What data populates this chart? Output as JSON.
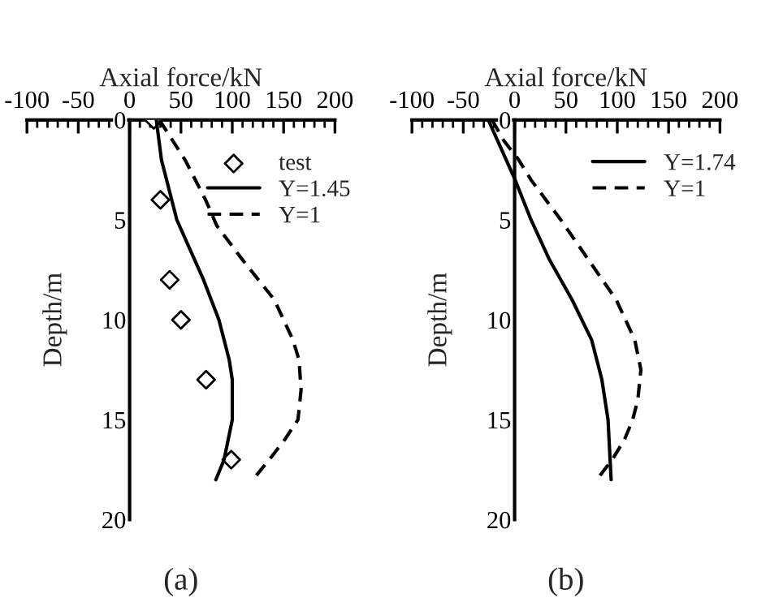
{
  "chart_data": [
    {
      "type": "line",
      "xlabel": "Axial force/kN",
      "ylabel": "Depth/m",
      "xlim": [
        -100,
        200
      ],
      "xticks": [
        -100,
        -50,
        0,
        50,
        100,
        150,
        200
      ],
      "ylim": [
        20,
        0
      ],
      "yticks": [
        0,
        5,
        10,
        15,
        20
      ],
      "legend": "top right",
      "grid": false,
      "annotations": [
        "(a)"
      ],
      "series": [
        {
          "name": "test",
          "type": "scatter",
          "marker": "diamond",
          "color": "#000000",
          "x": [
            23.5,
            30,
            39,
            50,
            74.5,
            99
          ],
          "values": [
            0,
            4,
            8,
            10,
            13,
            17
          ]
        },
        {
          "name": "Y=1.45",
          "type": "line",
          "line_style": "solid",
          "color": "#000000",
          "x": [
            26,
            31,
            46,
            72,
            87,
            97,
            100,
            100,
            96,
            92,
            84
          ],
          "values": [
            0,
            2,
            5,
            8,
            10,
            12,
            13,
            15,
            16,
            17,
            18
          ]
        },
        {
          "name": "Y=1",
          "type": "line",
          "line_style": "dashed",
          "color": "#000000",
          "x": [
            29,
            54,
            74,
            85,
            110,
            141,
            159,
            165,
            167,
            164,
            151,
            136,
            120
          ],
          "values": [
            0,
            2,
            4,
            5.3,
            7,
            9,
            11,
            12,
            13.5,
            15,
            16,
            17,
            18
          ]
        }
      ]
    },
    {
      "type": "line",
      "xlabel": "Axial force/kN",
      "ylabel": "Depth/m",
      "xlim": [
        -100,
        200
      ],
      "xticks": [
        -100,
        -50,
        0,
        50,
        100,
        150,
        200
      ],
      "ylim": [
        20,
        0
      ],
      "yticks": [
        0,
        5,
        10,
        15,
        20
      ],
      "legend": "top right",
      "grid": false,
      "annotations": [
        "(b)"
      ],
      "series": [
        {
          "name": "Y=1.74",
          "type": "line",
          "line_style": "solid",
          "color": "#000000",
          "x": [
            -25.6,
            0.5,
            16,
            34,
            56,
            75,
            85,
            91,
            92,
            93,
            94
          ],
          "values": [
            0,
            3,
            5,
            7,
            9,
            11,
            13,
            15,
            16,
            17,
            18
          ]
        },
        {
          "name": "Y=1",
          "type": "line",
          "line_style": "dashed",
          "color": "#000000",
          "x": [
            -22,
            -11,
            4,
            16,
            45,
            72,
            99,
            117,
            123,
            120,
            115,
            107,
            95,
            80
          ],
          "values": [
            0,
            1,
            2,
            3,
            5,
            7,
            9,
            11,
            12.5,
            14,
            15,
            16,
            17,
            18
          ]
        }
      ]
    }
  ]
}
